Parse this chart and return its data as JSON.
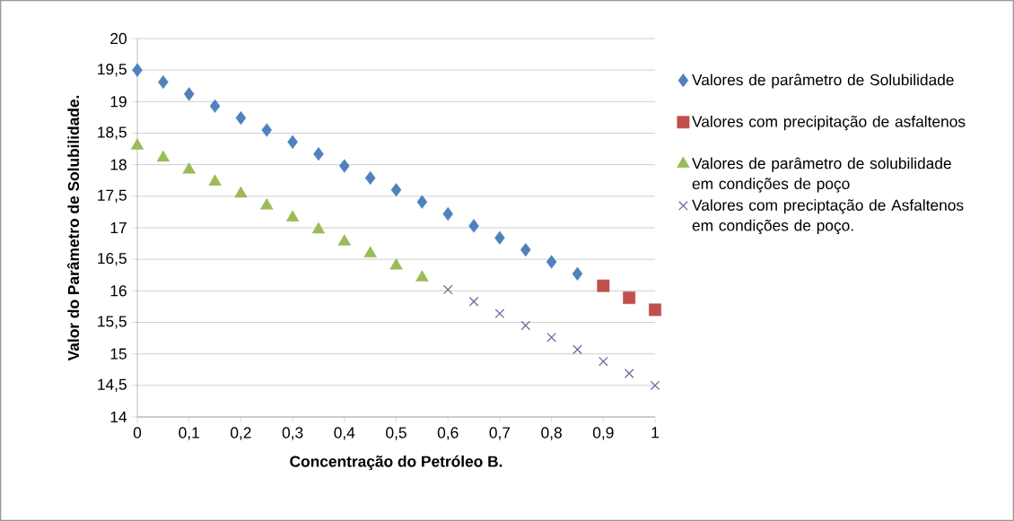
{
  "chart_data": {
    "type": "scatter",
    "xlabel": "Concentração do Petróleo B.",
    "ylabel": "Valor do Parâmetro de Solubilidade.",
    "xlim": [
      0,
      1
    ],
    "ylim": [
      14,
      20
    ],
    "xticks": [
      0,
      {
        "value": 0.1,
        "label": "0,1"
      },
      {
        "value": 0.2,
        "label": "0,2"
      },
      {
        "value": 0.3,
        "label": "0,3"
      },
      {
        "value": 0.4,
        "label": "0,4"
      },
      {
        "value": 0.5,
        "label": "0,5"
      },
      {
        "value": 0.6,
        "label": "0,6"
      },
      {
        "value": 0.7,
        "label": "0,7"
      },
      {
        "value": 0.8,
        "label": "0,8"
      },
      {
        "value": 0.9,
        "label": "0,9"
      },
      1
    ],
    "yticks": [
      14,
      {
        "value": 14.5,
        "label": "14,5"
      },
      15,
      {
        "value": 15.5,
        "label": "15,5"
      },
      16,
      {
        "value": 16.5,
        "label": "16,5"
      },
      17,
      {
        "value": 17.5,
        "label": "17,5"
      },
      18,
      {
        "value": 18.5,
        "label": "18,5"
      },
      19,
      {
        "value": 19.5,
        "label": "19,5"
      },
      20
    ],
    "grid": "y",
    "legend": "right",
    "series": [
      {
        "name": "Valores de parâmetro de Solubilidade",
        "color": "#4f81bd",
        "marker": "diamond",
        "x": [
          0,
          0.05,
          0.1,
          0.15,
          0.2,
          0.25,
          0.3,
          0.35,
          0.4,
          0.45,
          0.5,
          0.55,
          0.6,
          0.65,
          0.7,
          0.75,
          0.8,
          0.85
        ],
        "values": [
          19.5,
          19.31,
          19.12,
          18.93,
          18.74,
          18.55,
          18.36,
          18.17,
          17.98,
          17.79,
          17.6,
          17.41,
          17.22,
          17.03,
          16.84,
          16.65,
          16.46,
          16.27
        ]
      },
      {
        "name": "Valores com precipitação de asfaltenos",
        "color": "#c0504d",
        "marker": "square",
        "x": [
          0.9,
          0.95,
          1
        ],
        "values": [
          16.08,
          15.89,
          15.7
        ]
      },
      {
        "name": "Valores de parâmetro de solubilidade em condições de poço",
        "color": "#9bbb59",
        "marker": "triangle",
        "x": [
          0,
          0.05,
          0.1,
          0.15,
          0.2,
          0.25,
          0.3,
          0.35,
          0.4,
          0.45,
          0.5,
          0.55
        ],
        "values": [
          18.3,
          18.11,
          17.92,
          17.73,
          17.54,
          17.35,
          17.16,
          16.97,
          16.78,
          16.59,
          16.4,
          16.21
        ]
      },
      {
        "name": "Valores com preciptação de Asfaltenos em condições de poço.",
        "color": "#8064a2",
        "marker": "cross",
        "x": [
          0.6,
          0.65,
          0.7,
          0.75,
          0.8,
          0.85,
          0.9,
          0.95,
          1
        ],
        "values": [
          16.02,
          15.83,
          15.64,
          15.45,
          15.26,
          15.07,
          14.88,
          14.69,
          14.5
        ]
      }
    ]
  }
}
